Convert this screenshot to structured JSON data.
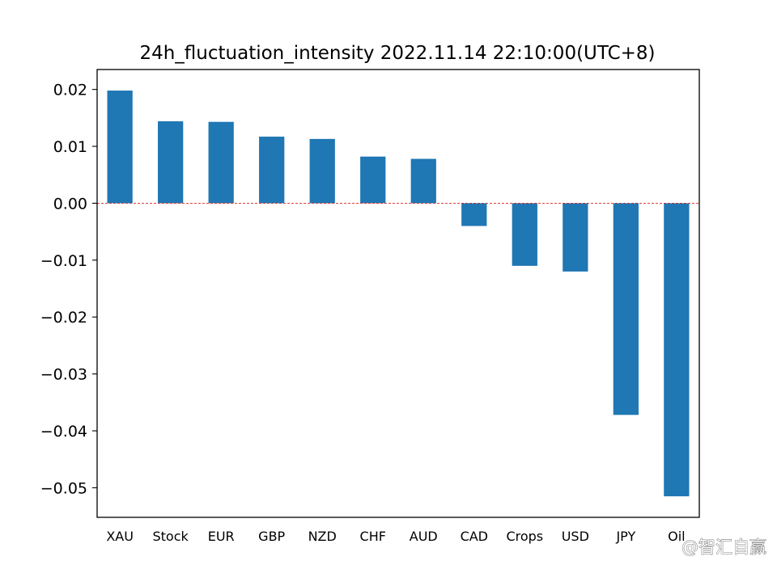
{
  "chart_data": {
    "type": "bar",
    "title": "24h_fluctuation_intensity 2022.11.14 22:10:00(UTC+8)",
    "xlabel": "",
    "ylabel": "",
    "categories": [
      "XAU",
      "Stock",
      "EUR",
      "GBP",
      "NZD",
      "CHF",
      "AUD",
      "CAD",
      "Crops",
      "USD",
      "JPY",
      "Oil"
    ],
    "values": [
      0.0198,
      0.0144,
      0.0143,
      0.0117,
      0.0113,
      0.0082,
      0.0078,
      -0.004,
      -0.011,
      -0.012,
      -0.0372,
      -0.0515
    ],
    "ylim": [
      -0.0552,
      0.0235
    ],
    "yticks": [
      0.02,
      0.01,
      0.0,
      -0.01,
      -0.02,
      -0.03,
      -0.04,
      -0.05
    ],
    "ytick_labels": [
      "0.02",
      "0.01",
      "0.00",
      "−0.01",
      "−0.02",
      "−0.03",
      "−0.04",
      "−0.05"
    ],
    "bar_color": "#1f77b4",
    "zero_line_color": "#d62728",
    "grid": false,
    "legend": "none"
  },
  "watermark": "@智汇自赢"
}
